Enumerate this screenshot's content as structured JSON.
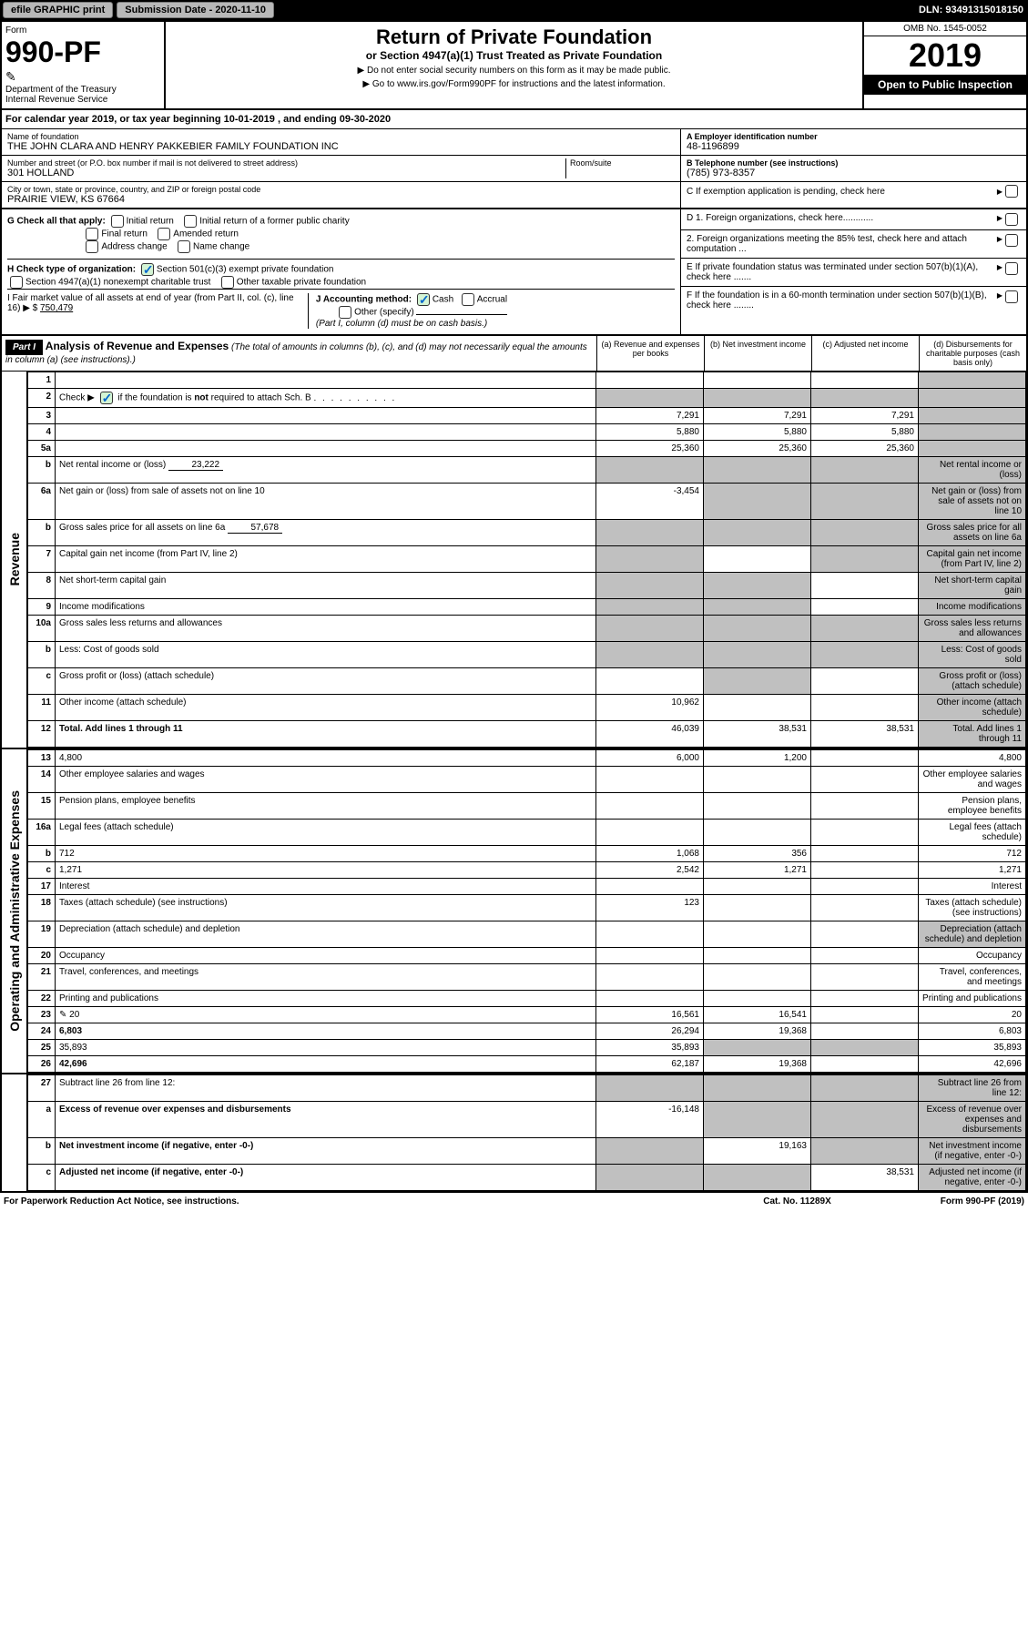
{
  "topbar": {
    "efile": "efile GRAPHIC print",
    "submission": "Submission Date - 2020-11-10",
    "dln": "DLN: 93491315018150"
  },
  "header": {
    "form_label": "Form",
    "form_no": "990-PF",
    "dept": "Department of the Treasury",
    "irs": "Internal Revenue Service",
    "title": "Return of Private Foundation",
    "subtitle": "or Section 4947(a)(1) Trust Treated as Private Foundation",
    "note1": "▶ Do not enter social security numbers on this form as it may be made public.",
    "note2": "▶ Go to www.irs.gov/Form990PF for instructions and the latest information.",
    "omb": "OMB No. 1545-0052",
    "year": "2019",
    "inspect": "Open to Public Inspection"
  },
  "cy": "For calendar year 2019, or tax year beginning 10-01-2019            , and ending 09-30-2020",
  "entity": {
    "name_lbl": "Name of foundation",
    "name": "THE JOHN CLARA AND HENRY PAKKEBIER FAMILY FOUNDATION INC",
    "addr_lbl": "Number and street (or P.O. box number if mail is not delivered to street address)",
    "addr": "301 HOLLAND",
    "room_lbl": "Room/suite",
    "city_lbl": "City or town, state or province, country, and ZIP or foreign postal code",
    "city": "PRAIRIE VIEW, KS  67664",
    "ein_lbl": "A Employer identification number",
    "ein": "48-1196899",
    "tel_lbl": "B Telephone number (see instructions)",
    "tel": "(785) 973-8357",
    "c_lbl": "C If exemption application is pending, check here"
  },
  "checks": {
    "g_lbl": "G Check all that apply:",
    "g1": "Initial return",
    "g2": "Initial return of a former public charity",
    "g3": "Final return",
    "g4": "Amended return",
    "g5": "Address change",
    "g6": "Name change",
    "h_lbl": "H Check type of organization:",
    "h1": "Section 501(c)(3) exempt private foundation",
    "h2": "Section 4947(a)(1) nonexempt charitable trust",
    "h3": "Other taxable private foundation",
    "i_lbl": "I Fair market value of all assets at end of year (from Part II, col. (c), line 16) ▶ $",
    "i_val": "750,479",
    "j_lbl": "J Accounting method:",
    "j1": "Cash",
    "j2": "Accrual",
    "j3": "Other (specify)",
    "j_note": "(Part I, column (d) must be on cash basis.)",
    "d1": "D 1. Foreign organizations, check here............",
    "d2": "2. Foreign organizations meeting the 85% test, check here and attach computation ...",
    "e": "E  If private foundation status was terminated under section 507(b)(1)(A), check here .......",
    "f": "F  If the foundation is in a 60-month termination under section 507(b)(1)(B), check here ........"
  },
  "part1": {
    "label": "Part I",
    "title": "Analysis of Revenue and Expenses",
    "sub": "(The total of amounts in columns (b), (c), and (d) may not necessarily equal the amounts in column (a) (see instructions).)",
    "ca": "(a)    Revenue and expenses per books",
    "cb": "(b)  Net investment income",
    "cc": "(c)  Adjusted net income",
    "cd": "(d)  Disbursements for charitable purposes (cash basis only)"
  },
  "rows": {
    "r1": {
      "n": "1",
      "d": "",
      "a": "",
      "b": "",
      "c": "",
      "dg": true
    },
    "r2": {
      "n": "2",
      "d": "Check ▶ ☑ if the foundation is not required to attach Sch. B",
      "special": true
    },
    "r3": {
      "n": "3",
      "d": "",
      "a": "7,291",
      "b": "7,291",
      "c": "7,291",
      "dg": true
    },
    "r4": {
      "n": "4",
      "d": "",
      "a": "5,880",
      "b": "5,880",
      "c": "5,880",
      "dg": true
    },
    "r5a": {
      "n": "5a",
      "d": "",
      "a": "25,360",
      "b": "25,360",
      "c": "25,360",
      "dg": true
    },
    "r5b": {
      "n": "b",
      "d": "Net rental income or (loss)",
      "inline": "23,222",
      "ag": true,
      "bg": true,
      "cg": true,
      "dg": true
    },
    "r6a": {
      "n": "6a",
      "d": "Net gain or (loss) from sale of assets not on line 10",
      "a": "-3,454",
      "bg": true,
      "cg": true,
      "dg": true
    },
    "r6b": {
      "n": "b",
      "d": "Gross sales price for all assets on line 6a",
      "inline": "57,678",
      "ag": true,
      "bg": true,
      "cg": true,
      "dg": true
    },
    "r7": {
      "n": "7",
      "d": "Capital gain net income (from Part IV, line 2)",
      "ag": true,
      "cg": true,
      "dg": true
    },
    "r8": {
      "n": "8",
      "d": "Net short-term capital gain",
      "ag": true,
      "bg": true,
      "dg": true
    },
    "r9": {
      "n": "9",
      "d": "Income modifications",
      "ag": true,
      "bg": true,
      "dg": true
    },
    "r10a": {
      "n": "10a",
      "d": "Gross sales less returns and allowances",
      "ag": true,
      "bg": true,
      "cg": true,
      "dg": true
    },
    "r10b": {
      "n": "b",
      "d": "Less: Cost of goods sold",
      "ag": true,
      "bg": true,
      "cg": true,
      "dg": true
    },
    "r10c": {
      "n": "c",
      "d": "Gross profit or (loss) (attach schedule)",
      "bg": true,
      "dg": true
    },
    "r11": {
      "n": "11",
      "d": "Other income (attach schedule)",
      "a": "10,962",
      "dg": true
    },
    "r12": {
      "n": "12",
      "d": "Total. Add lines 1 through 11",
      "a": "46,039",
      "b": "38,531",
      "c": "38,531",
      "dg": true,
      "bold": true
    },
    "r13": {
      "n": "13",
      "d": "4,800",
      "a": "6,000",
      "b": "1,200"
    },
    "r14": {
      "n": "14",
      "d": "Other employee salaries and wages"
    },
    "r15": {
      "n": "15",
      "d": "Pension plans, employee benefits"
    },
    "r16a": {
      "n": "16a",
      "d": "Legal fees (attach schedule)"
    },
    "r16b": {
      "n": "b",
      "d": "712",
      "a": "1,068",
      "b": "356"
    },
    "r16c": {
      "n": "c",
      "d": "1,271",
      "a": "2,542",
      "b": "1,271"
    },
    "r17": {
      "n": "17",
      "d": "Interest"
    },
    "r18": {
      "n": "18",
      "d": "Taxes (attach schedule) (see instructions)",
      "a": "123"
    },
    "r19": {
      "n": "19",
      "d": "Depreciation (attach schedule) and depletion",
      "dg": true
    },
    "r20": {
      "n": "20",
      "d": "Occupancy"
    },
    "r21": {
      "n": "21",
      "d": "Travel, conferences, and meetings"
    },
    "r22": {
      "n": "22",
      "d": "Printing and publications"
    },
    "r23": {
      "n": "23",
      "d": "20",
      "a": "16,561",
      "b": "16,541",
      "icon": true
    },
    "r24": {
      "n": "24",
      "d": "6,803",
      "a": "26,294",
      "b": "19,368",
      "bold": true
    },
    "r25": {
      "n": "25",
      "d": "35,893",
      "a": "35,893",
      "bg": true,
      "cg": true
    },
    "r26": {
      "n": "26",
      "d": "42,696",
      "a": "62,187",
      "b": "19,368",
      "bold": true
    },
    "r27": {
      "n": "27",
      "d": "Subtract line 26 from line 12:",
      "ag": true,
      "bg": true,
      "cg": true,
      "dg": true
    },
    "r27a": {
      "n": "a",
      "d": "Excess of revenue over expenses and disbursements",
      "a": "-16,148",
      "bg": true,
      "cg": true,
      "dg": true,
      "bold": true
    },
    "r27b": {
      "n": "b",
      "d": "Net investment income (if negative, enter -0-)",
      "ag": true,
      "b": "19,163",
      "cg": true,
      "dg": true,
      "bold": true
    },
    "r27c": {
      "n": "c",
      "d": "Adjusted net income (if negative, enter -0-)",
      "ag": true,
      "bg": true,
      "c": "38,531",
      "dg": true,
      "bold": true
    }
  },
  "sides": {
    "rev": "Revenue",
    "exp": "Operating and Administrative Expenses"
  },
  "footer": {
    "l": "For Paperwork Reduction Act Notice, see instructions.",
    "c": "Cat. No. 11289X",
    "r": "Form 990-PF (2019)"
  }
}
